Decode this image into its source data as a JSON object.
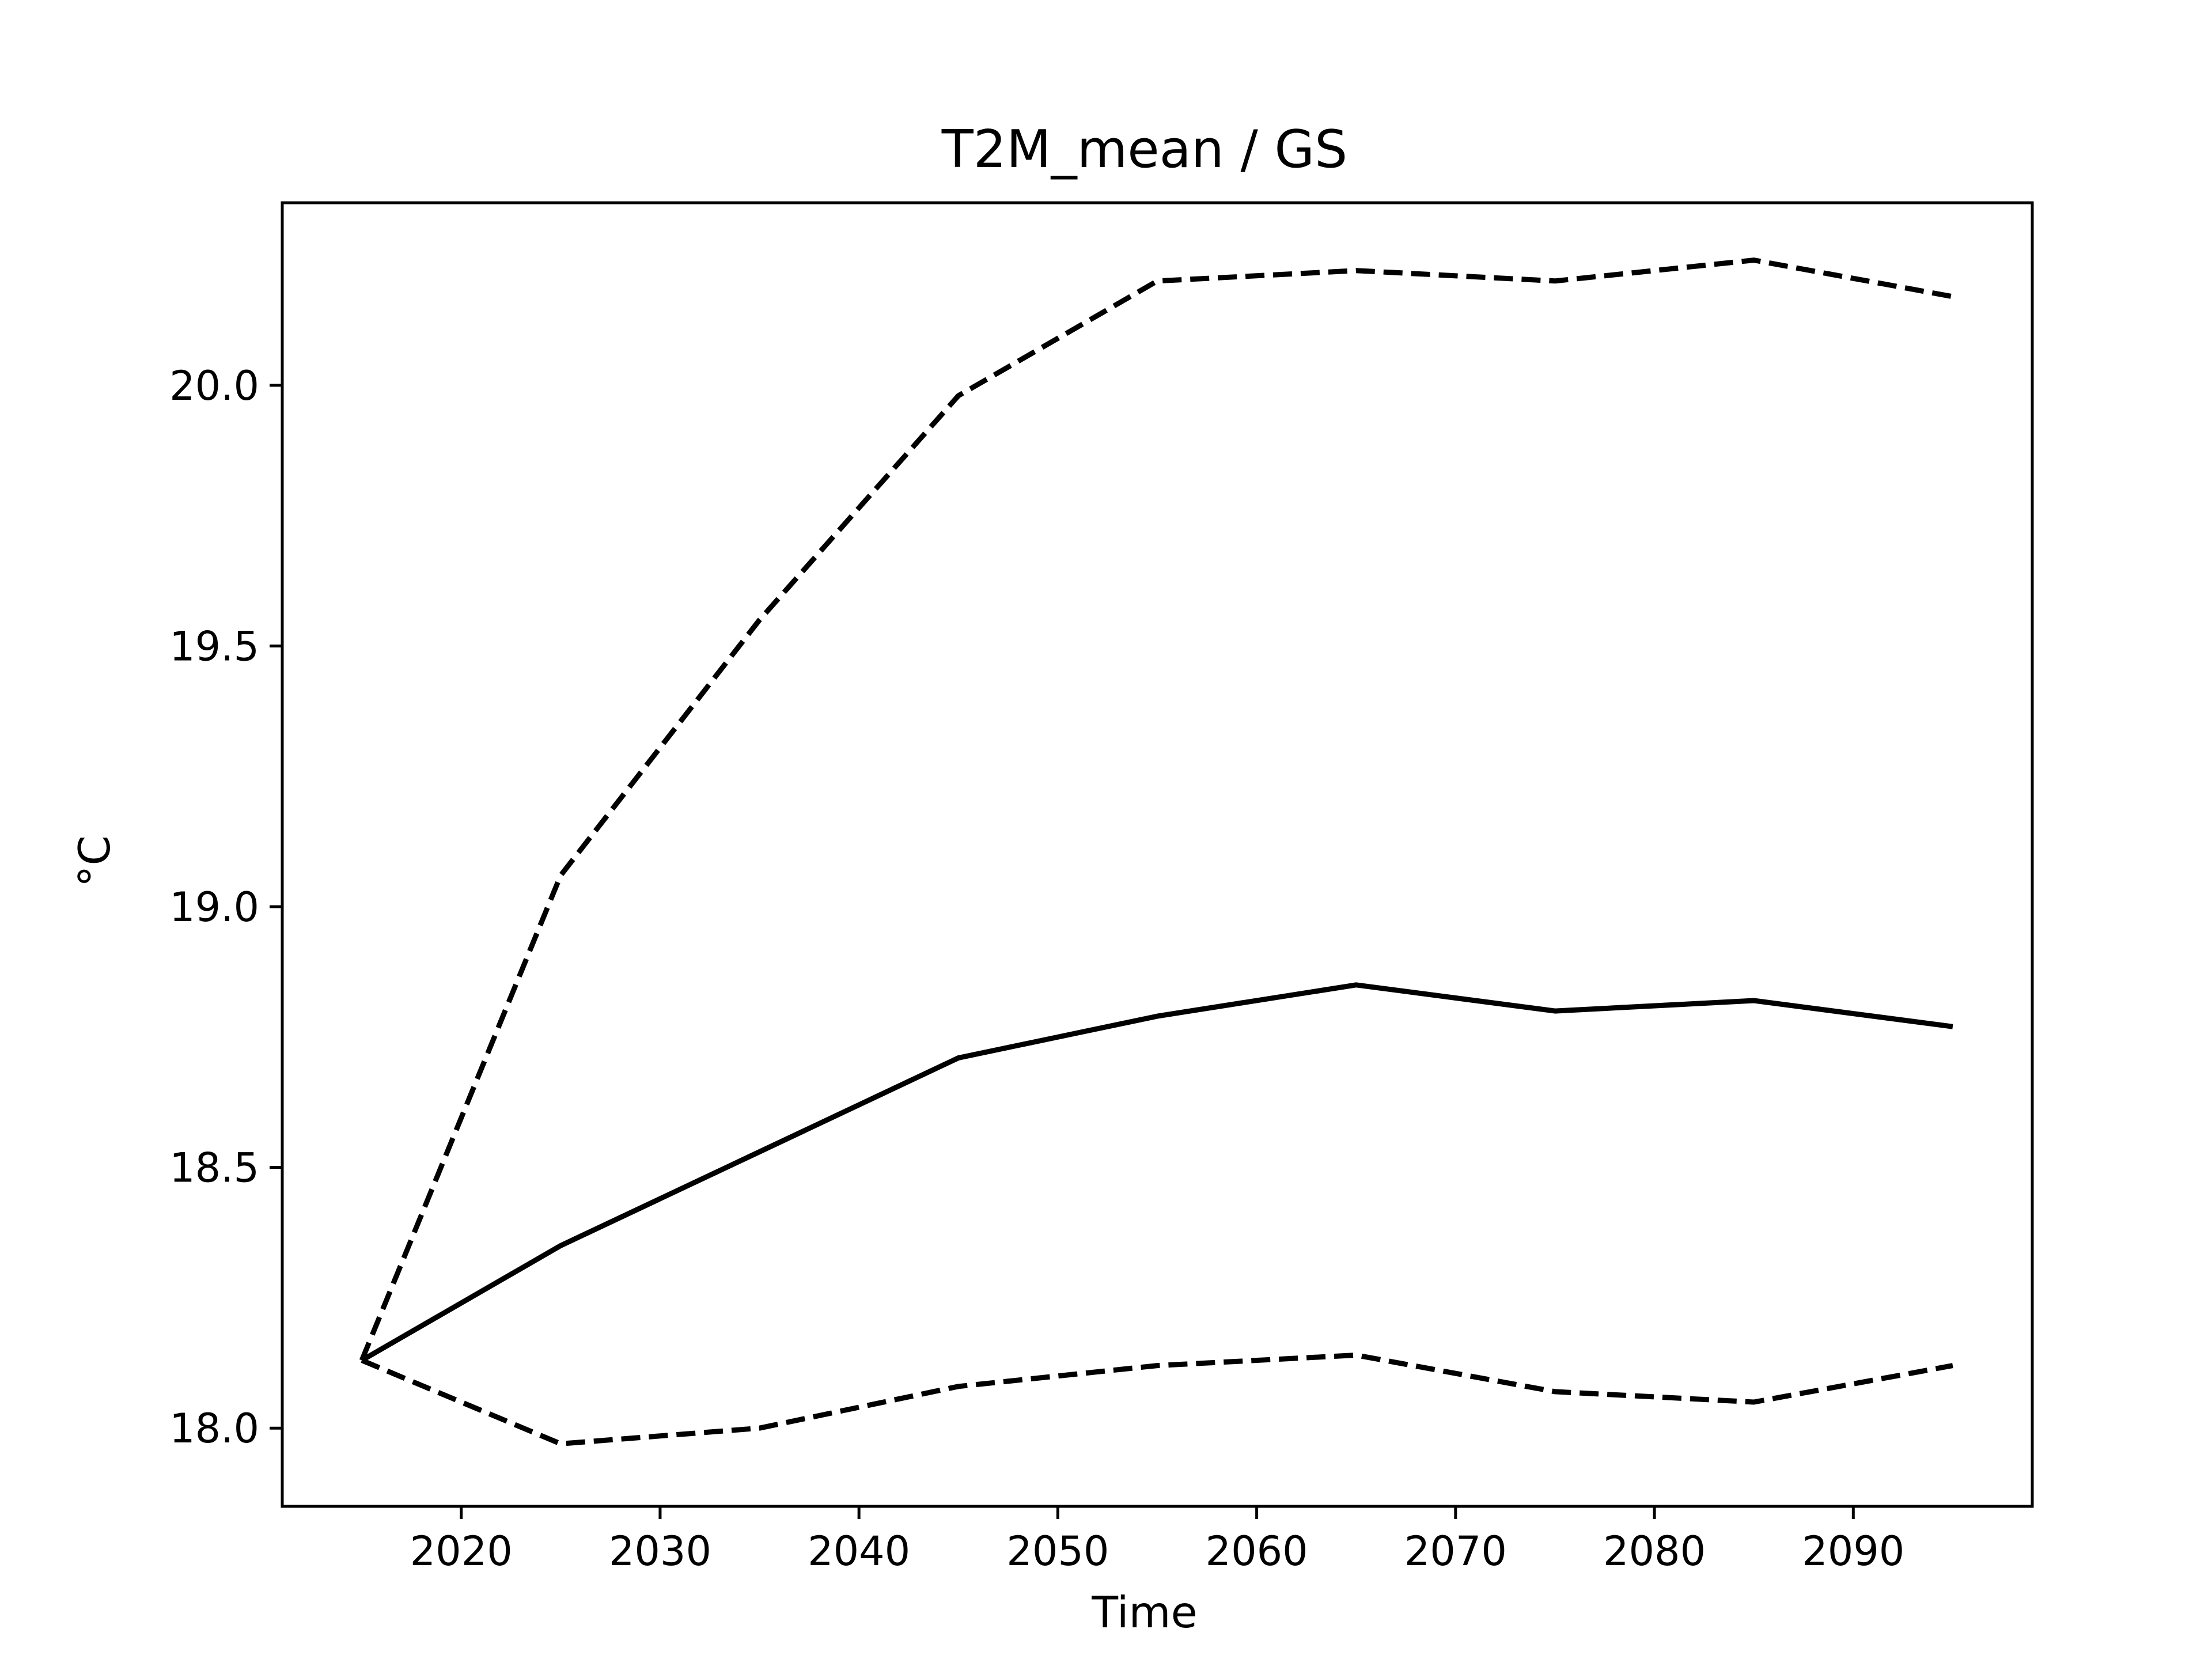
{
  "chart_data": {
    "type": "line",
    "title": "T2M_mean / GS",
    "xlabel": "Time",
    "ylabel": "°C",
    "xlim": [
      2011,
      2099
    ],
    "ylim": [
      17.85,
      20.35
    ],
    "xticks": [
      2020,
      2030,
      2040,
      2050,
      2060,
      2070,
      2080,
      2090
    ],
    "xtick_labels": [
      "2020",
      "2030",
      "2040",
      "2050",
      "2060",
      "2070",
      "2080",
      "2090"
    ],
    "yticks": [
      18.0,
      18.5,
      19.0,
      19.5,
      20.0
    ],
    "ytick_labels": [
      "18.0",
      "18.5",
      "19.0",
      "19.5",
      "20.0"
    ],
    "grid": false,
    "x": [
      2015,
      2025,
      2035,
      2045,
      2055,
      2065,
      2075,
      2085,
      2095
    ],
    "series": [
      {
        "style": "dashed",
        "color": "#000000",
        "values": [
          18.13,
          19.06,
          19.55,
          19.98,
          20.2,
          20.22,
          20.2,
          20.24,
          20.17
        ]
      },
      {
        "style": "solid",
        "color": "#000000",
        "values": [
          18.13,
          18.35,
          18.53,
          18.71,
          18.79,
          18.85,
          18.8,
          18.82,
          18.77
        ]
      },
      {
        "style": "dashed",
        "color": "#000000",
        "values": [
          18.13,
          17.97,
          18.0,
          18.08,
          18.12,
          18.14,
          18.07,
          18.05,
          18.12
        ]
      }
    ]
  }
}
